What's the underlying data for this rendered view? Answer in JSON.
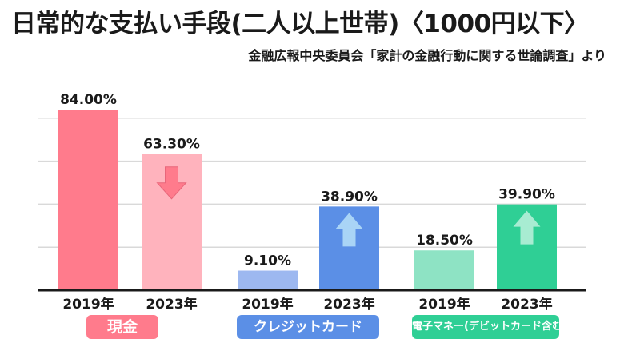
{
  "title": "日常的な支払い手段(二人以上世帯)〈1000円以下〉",
  "subtitle": "金融広報中央委員会「家計の金融行動に関する世論調査」より",
  "colors": {
    "cash_2019": "#ff7b8c",
    "cash_2023": "#ffb3bd",
    "credit_2019": "#9db8f0",
    "credit_2023": "#5b8fe6",
    "emoney_2019": "#8ee3c4",
    "emoney_2023": "#2fcf95",
    "arrow_down": "#ff7b8c",
    "arrow_up": "#a9d4f6",
    "arrow_up_green": "#a8ecd2"
  },
  "chart_data": {
    "type": "bar",
    "title": "日常的な支払い手段(二人以上世帯)〈1000円以下〉",
    "subtitle": "金融広報中央委員会「家計の金融行動に関する世論調査」より",
    "ylim": [
      0,
      100
    ],
    "grid": true,
    "groups": [
      {
        "name": "現金",
        "bars": [
          {
            "year": "2019年",
            "value": 84.0,
            "label": "84.00%"
          },
          {
            "year": "2023年",
            "value": 63.3,
            "label": "63.30%",
            "trend": "down"
          }
        ]
      },
      {
        "name": "クレジットカード",
        "bars": [
          {
            "year": "2019年",
            "value": 9.1,
            "label": "9.10%"
          },
          {
            "year": "2023年",
            "value": 38.9,
            "label": "38.90%",
            "trend": "up"
          }
        ]
      },
      {
        "name": "電子マネー(デビットカード含む)",
        "bars": [
          {
            "year": "2019年",
            "value": 18.5,
            "label": "18.50%"
          },
          {
            "year": "2023年",
            "value": 39.9,
            "label": "39.90%",
            "trend": "up"
          }
        ]
      }
    ]
  }
}
